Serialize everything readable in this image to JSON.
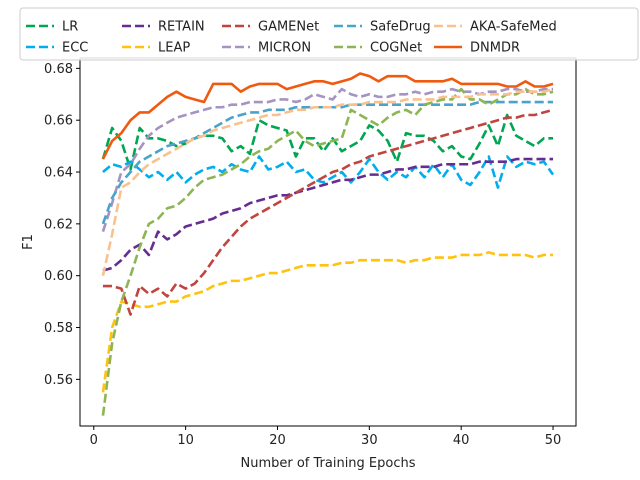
{
  "chart_data": {
    "type": "line",
    "title": "",
    "xlabel": "Number of Training Epochs",
    "ylabel": "F1",
    "xlim": [
      -1.5,
      52.5
    ],
    "ylim": [
      0.542,
      0.684
    ],
    "xticks": [
      0,
      10,
      20,
      30,
      40,
      50
    ],
    "yticks": [
      0.56,
      0.58,
      0.6,
      0.62,
      0.64,
      0.66,
      0.68
    ],
    "ytick_labels": [
      "0.56",
      "0.58",
      "0.60",
      "0.62",
      "0.64",
      "0.66",
      "0.68"
    ],
    "legend_position": "top",
    "x": [
      1,
      2,
      3,
      4,
      5,
      6,
      7,
      8,
      9,
      10,
      11,
      12,
      13,
      14,
      15,
      16,
      17,
      18,
      19,
      20,
      21,
      22,
      23,
      24,
      25,
      26,
      27,
      28,
      29,
      30,
      31,
      32,
      33,
      34,
      35,
      36,
      37,
      38,
      39,
      40,
      41,
      42,
      43,
      44,
      45,
      46,
      47,
      48,
      49,
      50
    ],
    "series": [
      {
        "name": "LR",
        "color": "#00a651",
        "dash": "dashed",
        "values": [
          0.645,
          0.657,
          0.652,
          0.641,
          0.657,
          0.653,
          0.653,
          0.652,
          0.65,
          0.651,
          0.653,
          0.654,
          0.654,
          0.653,
          0.648,
          0.65,
          0.647,
          0.66,
          0.658,
          0.657,
          0.656,
          0.646,
          0.653,
          0.653,
          0.648,
          0.653,
          0.648,
          0.65,
          0.652,
          0.658,
          0.656,
          0.652,
          0.644,
          0.655,
          0.654,
          0.654,
          0.652,
          0.648,
          0.65,
          0.646,
          0.645,
          0.651,
          0.658,
          0.65,
          0.662,
          0.654,
          0.652,
          0.65,
          0.653,
          0.653
        ]
      },
      {
        "name": "ECC",
        "color": "#00aeef",
        "dash": "dashed",
        "values": [
          0.64,
          0.643,
          0.642,
          0.644,
          0.641,
          0.638,
          0.64,
          0.637,
          0.64,
          0.636,
          0.639,
          0.641,
          0.642,
          0.64,
          0.643,
          0.641,
          0.64,
          0.646,
          0.641,
          0.642,
          0.644,
          0.64,
          0.641,
          0.637,
          0.636,
          0.638,
          0.64,
          0.636,
          0.64,
          0.645,
          0.64,
          0.637,
          0.64,
          0.638,
          0.642,
          0.638,
          0.643,
          0.638,
          0.643,
          0.637,
          0.635,
          0.64,
          0.646,
          0.634,
          0.646,
          0.642,
          0.644,
          0.643,
          0.644,
          0.639
        ]
      },
      {
        "name": "RETAIN",
        "color": "#662d91",
        "dash": "dashed",
        "values": [
          0.602,
          0.603,
          0.606,
          0.61,
          0.612,
          0.608,
          0.617,
          0.614,
          0.616,
          0.619,
          0.62,
          0.621,
          0.622,
          0.624,
          0.625,
          0.626,
          0.628,
          0.629,
          0.63,
          0.631,
          0.631,
          0.632,
          0.633,
          0.634,
          0.635,
          0.636,
          0.637,
          0.637,
          0.638,
          0.639,
          0.639,
          0.64,
          0.641,
          0.641,
          0.642,
          0.642,
          0.642,
          0.643,
          0.643,
          0.643,
          0.643,
          0.644,
          0.644,
          0.644,
          0.644,
          0.645,
          0.645,
          0.645,
          0.645,
          0.645
        ]
      },
      {
        "name": "LEAP",
        "color": "#ffc20e",
        "dash": "dashed",
        "values": [
          0.555,
          0.58,
          0.59,
          0.589,
          0.588,
          0.588,
          0.589,
          0.59,
          0.59,
          0.592,
          0.593,
          0.594,
          0.596,
          0.597,
          0.598,
          0.598,
          0.599,
          0.6,
          0.601,
          0.601,
          0.602,
          0.603,
          0.604,
          0.604,
          0.604,
          0.604,
          0.605,
          0.605,
          0.606,
          0.606,
          0.606,
          0.606,
          0.606,
          0.605,
          0.606,
          0.606,
          0.607,
          0.607,
          0.607,
          0.608,
          0.608,
          0.608,
          0.609,
          0.608,
          0.608,
          0.608,
          0.608,
          0.607,
          0.608,
          0.608
        ]
      },
      {
        "name": "GAMENet",
        "color": "#c1443e",
        "dash": "dashed",
        "values": [
          0.596,
          0.596,
          0.595,
          0.585,
          0.596,
          0.593,
          0.595,
          0.592,
          0.597,
          0.595,
          0.597,
          0.601,
          0.606,
          0.611,
          0.615,
          0.619,
          0.622,
          0.624,
          0.626,
          0.628,
          0.63,
          0.632,
          0.634,
          0.636,
          0.638,
          0.64,
          0.641,
          0.643,
          0.644,
          0.646,
          0.647,
          0.648,
          0.649,
          0.65,
          0.651,
          0.652,
          0.653,
          0.654,
          0.655,
          0.656,
          0.657,
          0.658,
          0.659,
          0.66,
          0.661,
          0.661,
          0.662,
          0.662,
          0.663,
          0.664
        ]
      },
      {
        "name": "MICRON",
        "color": "#a593c2",
        "dash": "dashed",
        "values": [
          0.617,
          0.628,
          0.64,
          0.643,
          0.649,
          0.654,
          0.657,
          0.659,
          0.661,
          0.662,
          0.663,
          0.664,
          0.665,
          0.665,
          0.666,
          0.666,
          0.667,
          0.667,
          0.667,
          0.668,
          0.668,
          0.667,
          0.668,
          0.67,
          0.669,
          0.668,
          0.672,
          0.67,
          0.669,
          0.67,
          0.669,
          0.669,
          0.67,
          0.67,
          0.671,
          0.67,
          0.671,
          0.671,
          0.672,
          0.671,
          0.671,
          0.67,
          0.671,
          0.671,
          0.672,
          0.672,
          0.671,
          0.671,
          0.672,
          0.672
        ]
      },
      {
        "name": "SafeDrug",
        "color": "#4aa3c9",
        "dash": "dashed",
        "values": [
          0.62,
          0.63,
          0.636,
          0.64,
          0.644,
          0.646,
          0.648,
          0.65,
          0.651,
          0.652,
          0.653,
          0.655,
          0.657,
          0.659,
          0.661,
          0.662,
          0.663,
          0.663,
          0.664,
          0.664,
          0.664,
          0.665,
          0.665,
          0.665,
          0.665,
          0.665,
          0.665,
          0.666,
          0.666,
          0.666,
          0.666,
          0.666,
          0.666,
          0.666,
          0.666,
          0.666,
          0.666,
          0.666,
          0.666,
          0.666,
          0.666,
          0.667,
          0.667,
          0.667,
          0.667,
          0.667,
          0.667,
          0.667,
          0.667,
          0.667
        ]
      },
      {
        "name": "COGNet",
        "color": "#8db554",
        "dash": "dashed",
        "values": [
          0.546,
          0.574,
          0.59,
          0.6,
          0.611,
          0.62,
          0.622,
          0.626,
          0.627,
          0.63,
          0.634,
          0.637,
          0.638,
          0.639,
          0.641,
          0.643,
          0.646,
          0.648,
          0.649,
          0.652,
          0.654,
          0.656,
          0.652,
          0.65,
          0.651,
          0.652,
          0.653,
          0.664,
          0.662,
          0.66,
          0.658,
          0.661,
          0.663,
          0.664,
          0.662,
          0.666,
          0.667,
          0.668,
          0.668,
          0.672,
          0.668,
          0.668,
          0.666,
          0.668,
          0.67,
          0.67,
          0.672,
          0.67,
          0.67,
          0.671
        ]
      },
      {
        "name": "AKA-SafeMed",
        "color": "#f9c18e",
        "dash": "dashed",
        "values": [
          0.6,
          0.616,
          0.634,
          0.636,
          0.64,
          0.643,
          0.645,
          0.647,
          0.649,
          0.651,
          0.653,
          0.654,
          0.656,
          0.657,
          0.658,
          0.659,
          0.66,
          0.661,
          0.662,
          0.662,
          0.663,
          0.664,
          0.664,
          0.665,
          0.665,
          0.665,
          0.666,
          0.666,
          0.666,
          0.667,
          0.667,
          0.667,
          0.667,
          0.668,
          0.668,
          0.668,
          0.668,
          0.669,
          0.669,
          0.669,
          0.669,
          0.67,
          0.67,
          0.67,
          0.67,
          0.671,
          0.671,
          0.671,
          0.671,
          0.672
        ]
      },
      {
        "name": "DNMDR",
        "color": "#f05a0f",
        "dash": "solid",
        "values": [
          0.645,
          0.652,
          0.655,
          0.66,
          0.663,
          0.663,
          0.666,
          0.669,
          0.671,
          0.669,
          0.668,
          0.667,
          0.674,
          0.674,
          0.674,
          0.671,
          0.673,
          0.674,
          0.674,
          0.674,
          0.672,
          0.673,
          0.674,
          0.675,
          0.675,
          0.674,
          0.675,
          0.676,
          0.678,
          0.677,
          0.675,
          0.677,
          0.677,
          0.677,
          0.675,
          0.675,
          0.675,
          0.675,
          0.676,
          0.674,
          0.674,
          0.674,
          0.674,
          0.674,
          0.673,
          0.673,
          0.675,
          0.673,
          0.673,
          0.674
        ]
      }
    ]
  }
}
